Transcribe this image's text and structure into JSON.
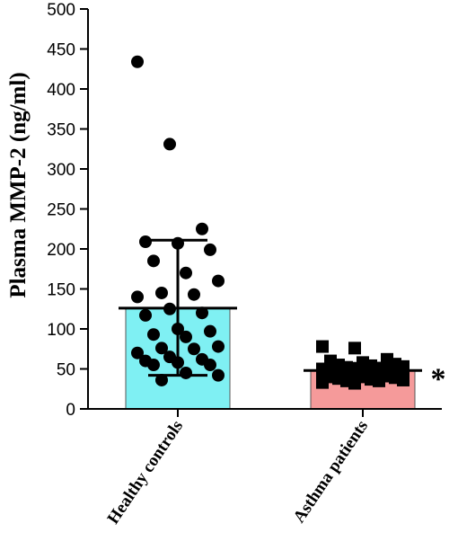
{
  "chart_data": {
    "type": "bar",
    "title": "",
    "xlabel": "",
    "ylabel": "Plasma MMP-2 (ng/ml)",
    "ylim": [
      0,
      500
    ],
    "yticks": [
      0,
      50,
      100,
      150,
      200,
      250,
      300,
      350,
      400,
      450,
      500
    ],
    "grid": false,
    "categories": [
      "Healthy controls",
      "Asthma patients"
    ],
    "series": [
      {
        "values": [
          126,
          48
        ],
        "error_lower": [
          42,
          40
        ],
        "error_upper": [
          211,
          57
        ],
        "bar_colors": [
          "#7ff0f3",
          "#f59a9a"
        ],
        "marker_shapes": [
          "circle",
          "square"
        ],
        "points": [
          [
            434,
            331,
            225,
            209,
            207,
            199,
            185,
            170,
            160,
            145,
            143,
            140,
            125,
            120,
            117,
            100,
            97,
            93,
            90,
            78,
            76,
            75,
            70,
            65,
            62,
            60,
            58,
            55,
            55,
            45,
            42,
            36
          ],
          [
            78,
            76,
            62,
            60,
            58,
            56,
            55,
            54,
            53,
            52,
            51,
            50,
            50,
            49,
            48,
            47,
            47,
            46,
            45,
            45,
            44,
            43,
            42,
            42,
            41,
            40,
            40,
            39,
            38,
            37,
            36,
            35,
            35,
            33,
            32
          ]
        ]
      }
    ],
    "annotations": [
      {
        "category": "Asthma patients",
        "text": "*"
      }
    ]
  }
}
